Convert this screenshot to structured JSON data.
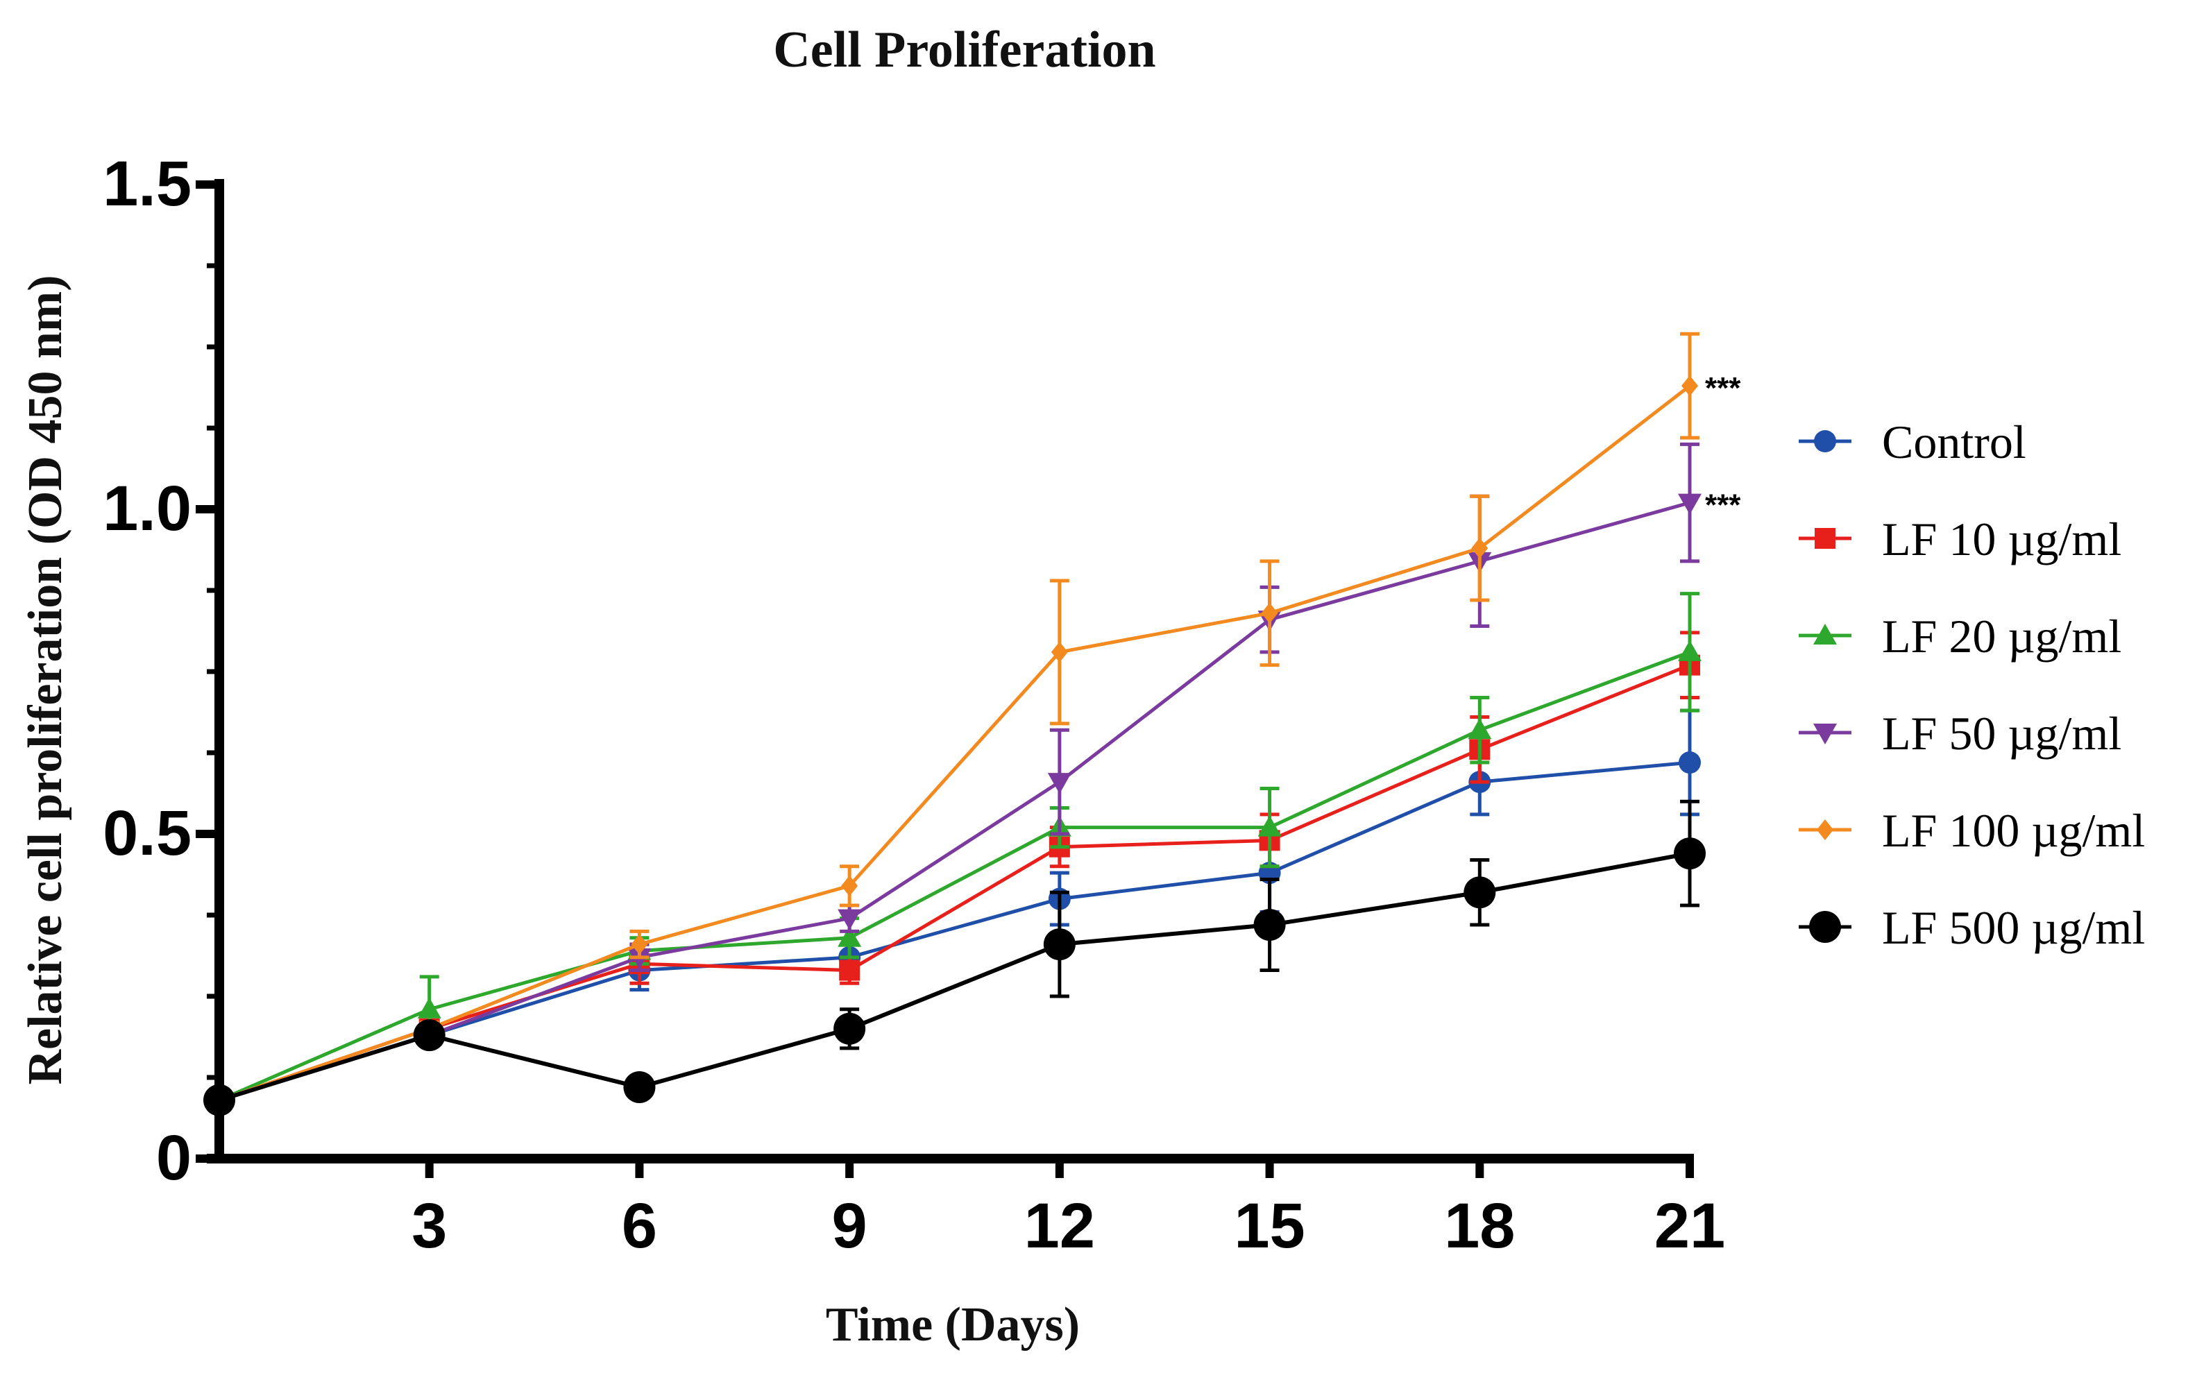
{
  "chart_data": {
    "type": "line",
    "title": "Cell Proliferation",
    "xlabel": "Time (Days)",
    "ylabel": "Relative cell proliferation (OD 450 nm)",
    "xlim": [
      0,
      21
    ],
    "ylim": [
      0,
      1.5
    ],
    "x_ticks": [
      3,
      6,
      9,
      12,
      15,
      18,
      21
    ],
    "x_tick_labels": [
      "3",
      "6",
      "9",
      "12",
      "15",
      "18",
      "21"
    ],
    "y_ticks": [
      0,
      0.5,
      1.0,
      1.5
    ],
    "y_tick_labels": [
      "0",
      "0.5",
      "1.0",
      "1.5"
    ],
    "y_minor_step": 0.125,
    "legend_position": "right",
    "x": [
      0,
      3,
      6,
      9,
      12,
      15,
      18,
      21
    ],
    "series": [
      {
        "name": "Control",
        "color": "#1f4fa8",
        "marker": "circle",
        "values": [
          0.09,
          0.19,
          0.29,
          0.31,
          0.4,
          0.44,
          0.58,
          0.61
        ],
        "errors": [
          0.0,
          0.01,
          0.03,
          0.02,
          0.04,
          0.06,
          0.05,
          0.08
        ]
      },
      {
        "name": "LF 10 µg/ml",
        "color": "#e8201c",
        "marker": "square",
        "values": [
          0.09,
          0.2,
          0.3,
          0.29,
          0.48,
          0.49,
          0.63,
          0.76
        ],
        "errors": [
          0.0,
          0.01,
          0.03,
          0.02,
          0.03,
          0.04,
          0.05,
          0.05
        ]
      },
      {
        "name": "LF 20 µg/ml",
        "color": "#2ea82c",
        "marker": "triangle-up",
        "values": [
          0.09,
          0.23,
          0.32,
          0.34,
          0.51,
          0.51,
          0.66,
          0.78
        ],
        "errors": [
          0.0,
          0.05,
          0.02,
          0.03,
          0.03,
          0.06,
          0.05,
          0.09
        ]
      },
      {
        "name": "LF 50 µg/ml",
        "color": "#7b3a9e",
        "marker": "triangle-down",
        "values": [
          0.09,
          0.19,
          0.31,
          0.37,
          0.58,
          0.83,
          0.92,
          1.01
        ],
        "errors": [
          0.0,
          0.01,
          0.02,
          0.02,
          0.08,
          0.05,
          0.1,
          0.09
        ]
      },
      {
        "name": "LF 100 µg/ml",
        "color": "#f28a1f",
        "marker": "diamond",
        "values": [
          0.09,
          0.2,
          0.33,
          0.42,
          0.78,
          0.84,
          0.94,
          1.19
        ],
        "errors": [
          0.0,
          0.01,
          0.02,
          0.03,
          0.11,
          0.08,
          0.08,
          0.08
        ]
      },
      {
        "name": "LF 500 µg/ml",
        "color": "#000000",
        "marker": "circle-large",
        "values": [
          0.09,
          0.19,
          0.11,
          0.2,
          0.33,
          0.36,
          0.41,
          0.47
        ],
        "errors": [
          0.0,
          0.01,
          0.01,
          0.03,
          0.08,
          0.07,
          0.05,
          0.08
        ]
      }
    ],
    "annotations": [
      {
        "text": "***",
        "x": 21,
        "y": 1.19,
        "series": "LF 100 µg/ml"
      },
      {
        "text": "***",
        "x": 21,
        "y": 1.01,
        "series": "LF 50 µg/ml"
      }
    ]
  }
}
